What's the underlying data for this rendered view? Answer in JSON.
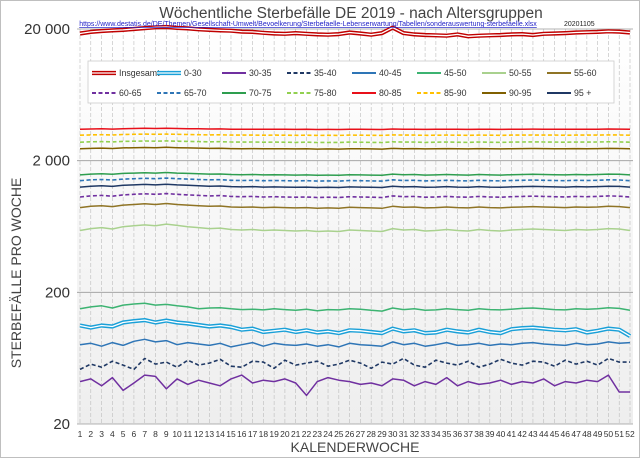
{
  "chart_data": {
    "type": "line",
    "title": "Wöchentliche Sterbefälle DE 2019 - nach Altersgruppen",
    "source_url": "https://www.destatis.de/DE/Themen/Gesellschaft-Umwelt/Bevoelkerung/Sterbefaelle-Lebenserwartung/Tabellen/sonderauswertung-sterbefaelle.xlsx",
    "source_date": "20201105",
    "xlabel": "KALENDERWOCHE",
    "ylabel": "STERBEFÄLLE PRO WOCHE",
    "yscale": "log",
    "ylim": [
      20,
      20000
    ],
    "yticks": [
      20,
      200,
      2000,
      20000
    ],
    "ytick_labels": [
      "20",
      "200",
      "2 000",
      "20 000"
    ],
    "grid": true,
    "legend": "top",
    "x": [
      1,
      2,
      3,
      4,
      5,
      6,
      7,
      8,
      9,
      10,
      11,
      12,
      13,
      14,
      15,
      16,
      17,
      18,
      19,
      20,
      21,
      22,
      23,
      24,
      25,
      26,
      27,
      28,
      29,
      30,
      31,
      32,
      33,
      34,
      35,
      36,
      37,
      38,
      39,
      40,
      41,
      42,
      43,
      44,
      45,
      46,
      47,
      48,
      49,
      50,
      51,
      52
    ],
    "series": [
      {
        "name": "Insgesamt",
        "color": "#c00000",
        "style": "double",
        "values": [
          18500,
          19000,
          19300,
          19500,
          19700,
          20000,
          20300,
          20600,
          20700,
          20400,
          20200,
          19900,
          19700,
          19500,
          19400,
          19100,
          19000,
          18700,
          18500,
          18400,
          18600,
          18400,
          18200,
          18100,
          18300,
          18800,
          18500,
          18100,
          18600,
          20500,
          18600,
          18200,
          18000,
          17900,
          17800,
          18200,
          17600,
          17800,
          17900,
          18000,
          18200,
          18300,
          18000,
          18400,
          18500,
          18600,
          18800,
          18900,
          19000,
          19200,
          19100,
          18800
        ]
      },
      {
        "name": "0-30",
        "color": "#1aa0d8",
        "style": "double",
        "values": [
          112,
          108,
          112,
          110,
          118,
          121,
          123,
          118,
          122,
          118,
          116,
          113,
          110,
          112,
          109,
          104,
          106,
          100,
          102,
          104,
          100,
          103,
          99,
          101,
          98,
          103,
          102,
          100,
          98,
          106,
          101,
          103,
          98,
          99,
          104,
          101,
          99,
          104,
          100,
          98,
          105,
          107,
          108,
          106,
          104,
          103,
          105,
          99,
          102,
          106,
          104,
          93
        ]
      },
      {
        "name": "30-35",
        "color": "#7030a0",
        "style": "solid",
        "values": [
          42,
          44,
          39,
          45,
          36,
          41,
          47,
          46,
          37,
          44,
          40,
          43,
          41,
          39,
          44,
          47,
          41,
          43,
          42,
          44,
          41,
          33,
          42,
          45,
          43,
          42,
          40,
          41,
          39,
          44,
          43,
          39,
          42,
          40,
          45,
          39,
          42,
          40,
          41,
          43,
          40,
          42,
          41,
          44,
          39,
          42,
          41,
          43,
          42,
          47,
          35,
          35
        ]
      },
      {
        "name": "35-40",
        "color": "#1f3864",
        "style": "dash",
        "values": [
          52,
          57,
          54,
          60,
          56,
          52,
          63,
          57,
          59,
          54,
          61,
          56,
          58,
          62,
          55,
          54,
          60,
          59,
          53,
          61,
          56,
          58,
          60,
          55,
          57,
          61,
          58,
          53,
          59,
          57,
          63,
          56,
          54,
          61,
          58,
          56,
          60,
          54,
          57,
          62,
          58,
          56,
          60,
          59,
          55,
          61,
          57,
          60,
          56,
          63,
          59,
          59
        ]
      },
      {
        "name": "40-45",
        "color": "#2e75b6",
        "style": "solid",
        "values": [
          80,
          82,
          78,
          83,
          79,
          85,
          88,
          84,
          86,
          80,
          83,
          81,
          79,
          82,
          77,
          80,
          83,
          78,
          82,
          80,
          79,
          81,
          78,
          80,
          77,
          82,
          80,
          79,
          78,
          84,
          80,
          82,
          78,
          80,
          83,
          79,
          80,
          82,
          79,
          81,
          80,
          82,
          83,
          81,
          80,
          79,
          82,
          80,
          81,
          84,
          82,
          83
        ]
      },
      {
        "name": "45-50",
        "color": "#3cb371",
        "style": "solid",
        "values": [
          150,
          155,
          158,
          152,
          160,
          163,
          165,
          160,
          162,
          158,
          155,
          150,
          152,
          153,
          150,
          148,
          149,
          147,
          150,
          148,
          146,
          149,
          145,
          148,
          147,
          150,
          149,
          146,
          144,
          152,
          148,
          150,
          146,
          147,
          150,
          148,
          146,
          150,
          148,
          147,
          149,
          151,
          152,
          150,
          148,
          147,
          150,
          149,
          150,
          153,
          151,
          146
        ]
      },
      {
        "name": "50-55",
        "color": "#a9d18e",
        "style": "solid",
        "values": [
          590,
          610,
          620,
          605,
          630,
          640,
          650,
          640,
          660,
          645,
          630,
          620,
          610,
          615,
          600,
          595,
          600,
          590,
          595,
          590,
          585,
          590,
          580,
          585,
          580,
          595,
          590,
          585,
          580,
          610,
          595,
          600,
          585,
          590,
          600,
          590,
          585,
          600,
          590,
          585,
          595,
          600,
          605,
          600,
          595,
          590,
          600,
          595,
          600,
          610,
          605,
          590
        ]
      },
      {
        "name": "55-60",
        "color": "#8f7425",
        "style": "solid",
        "values": [
          880,
          900,
          910,
          895,
          920,
          930,
          940,
          930,
          945,
          930,
          920,
          910,
          900,
          905,
          890,
          885,
          890,
          880,
          885,
          880,
          875,
          880,
          870,
          875,
          870,
          885,
          880,
          875,
          870,
          900,
          885,
          890,
          875,
          880,
          890,
          880,
          875,
          890,
          880,
          875,
          885,
          890,
          895,
          890,
          885,
          880,
          890,
          885,
          890,
          900,
          895,
          880
        ]
      },
      {
        "name": "60-65",
        "color": "#7030a0",
        "style": "dash",
        "values": [
          1060,
          1080,
          1090,
          1075,
          1100,
          1110,
          1120,
          1110,
          1125,
          1110,
          1100,
          1090,
          1080,
          1085,
          1070,
          1065,
          1070,
          1060,
          1065,
          1060,
          1055,
          1060,
          1050,
          1055,
          1050,
          1065,
          1060,
          1055,
          1050,
          1080,
          1065,
          1070,
          1055,
          1060,
          1070,
          1060,
          1055,
          1070,
          1060,
          1055,
          1065,
          1070,
          1075,
          1070,
          1065,
          1060,
          1070,
          1065,
          1070,
          1080,
          1075,
          1060
        ]
      },
      {
        "name": "65-70",
        "color": "#2e75b6",
        "style": "dash",
        "values": [
          1410,
          1430,
          1440,
          1425,
          1450,
          1460,
          1470,
          1460,
          1475,
          1460,
          1450,
          1440,
          1430,
          1435,
          1420,
          1415,
          1420,
          1410,
          1415,
          1410,
          1405,
          1410,
          1400,
          1405,
          1400,
          1415,
          1410,
          1405,
          1400,
          1430,
          1415,
          1420,
          1405,
          1410,
          1420,
          1410,
          1405,
          1420,
          1410,
          1405,
          1415,
          1420,
          1425,
          1420,
          1415,
          1410,
          1420,
          1415,
          1420,
          1430,
          1425,
          1410
        ]
      },
      {
        "name": "70-75",
        "color": "#2e9e4f",
        "style": "solid",
        "values": [
          1560,
          1580,
          1590,
          1575,
          1600,
          1610,
          1620,
          1610,
          1625,
          1610,
          1600,
          1590,
          1580,
          1585,
          1570,
          1565,
          1570,
          1560,
          1565,
          1560,
          1555,
          1560,
          1550,
          1555,
          1550,
          1565,
          1560,
          1555,
          1550,
          1580,
          1565,
          1570,
          1555,
          1560,
          1570,
          1560,
          1555,
          1570,
          1560,
          1555,
          1565,
          1570,
          1575,
          1570,
          1565,
          1560,
          1570,
          1565,
          1570,
          1580,
          1575,
          1560
        ]
      },
      {
        "name": "75-80",
        "color": "#92d050",
        "style": "dash",
        "values": [
          2760,
          2780,
          2790,
          2775,
          2800,
          2810,
          2820,
          2810,
          2825,
          2810,
          2800,
          2790,
          2780,
          2785,
          2770,
          2765,
          2770,
          2760,
          2765,
          2760,
          2755,
          2760,
          2750,
          2755,
          2750,
          2765,
          2760,
          2755,
          2750,
          2780,
          2765,
          2770,
          2755,
          2760,
          2770,
          2760,
          2755,
          2770,
          2760,
          2755,
          2765,
          2770,
          2775,
          2770,
          2765,
          2760,
          2770,
          2765,
          2770,
          2780,
          2775,
          2760
        ]
      },
      {
        "name": "80-85",
        "color": "#e8101a",
        "style": "solid",
        "values": [
          3460,
          3480,
          3490,
          3475,
          3500,
          3510,
          3520,
          3510,
          3525,
          3510,
          3500,
          3490,
          3480,
          3485,
          3470,
          3465,
          3470,
          3460,
          3465,
          3460,
          3455,
          3460,
          3450,
          3455,
          3450,
          3465,
          3460,
          3455,
          3450,
          3480,
          3465,
          3470,
          3455,
          3460,
          3470,
          3460,
          3455,
          3470,
          3460,
          3455,
          3465,
          3470,
          3475,
          3470,
          3465,
          3460,
          3470,
          3465,
          3470,
          3480,
          3475,
          3460
        ]
      },
      {
        "name": "85-90",
        "color": "#ffc000",
        "style": "dash",
        "values": [
          3120,
          3140,
          3150,
          3135,
          3160,
          3170,
          3180,
          3170,
          3185,
          3170,
          3160,
          3150,
          3140,
          3145,
          3130,
          3125,
          3130,
          3120,
          3125,
          3120,
          3115,
          3120,
          3110,
          3115,
          3110,
          3125,
          3120,
          3115,
          3110,
          3140,
          3125,
          3130,
          3115,
          3120,
          3130,
          3120,
          3115,
          3130,
          3120,
          3115,
          3125,
          3130,
          3135,
          3130,
          3125,
          3120,
          3130,
          3125,
          3130,
          3140,
          3135,
          3120
        ]
      },
      {
        "name": "90-95",
        "color": "#806000",
        "style": "solid",
        "values": [
          2460,
          2480,
          2490,
          2475,
          2500,
          2510,
          2520,
          2510,
          2525,
          2510,
          2500,
          2490,
          2480,
          2485,
          2470,
          2465,
          2470,
          2460,
          2465,
          2460,
          2455,
          2460,
          2450,
          2455,
          2450,
          2465,
          2460,
          2455,
          2450,
          2480,
          2465,
          2470,
          2455,
          2460,
          2470,
          2460,
          2455,
          2470,
          2460,
          2455,
          2465,
          2470,
          2475,
          2470,
          2465,
          2460,
          2470,
          2465,
          2470,
          2480,
          2475,
          2460
        ]
      },
      {
        "name": "95 +",
        "color": "#1f3864",
        "style": "solid",
        "values": [
          1260,
          1280,
          1290,
          1275,
          1300,
          1310,
          1320,
          1310,
          1325,
          1310,
          1300,
          1290,
          1280,
          1285,
          1270,
          1265,
          1270,
          1260,
          1265,
          1260,
          1255,
          1260,
          1250,
          1255,
          1250,
          1265,
          1260,
          1255,
          1250,
          1280,
          1265,
          1270,
          1255,
          1260,
          1270,
          1260,
          1255,
          1270,
          1260,
          1255,
          1265,
          1270,
          1275,
          1270,
          1265,
          1260,
          1270,
          1265,
          1270,
          1280,
          1275,
          1260
        ]
      }
    ]
  }
}
